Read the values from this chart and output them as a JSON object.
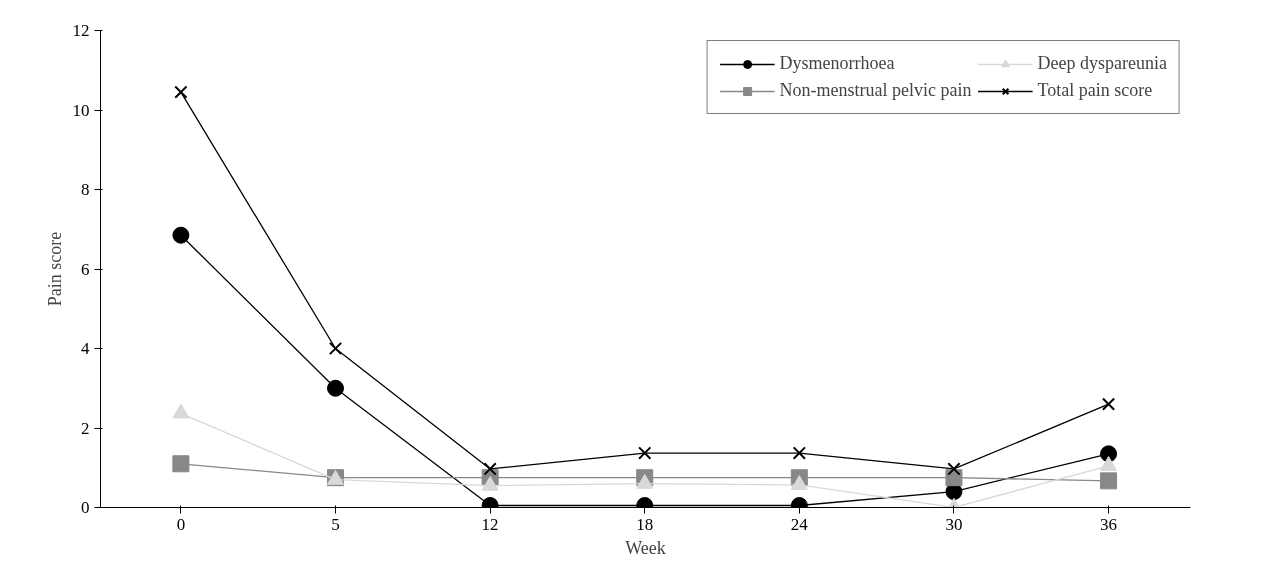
{
  "chart_data": {
    "type": "line",
    "xlabel": "Week",
    "ylabel": "Pain score",
    "categories": [
      "0",
      "5",
      "12",
      "18",
      "24",
      "30",
      "36"
    ],
    "ylim": [
      0,
      12
    ],
    "yticks": [
      0,
      2,
      4,
      6,
      8,
      10,
      12
    ],
    "grid": false,
    "legend": "top right",
    "series": [
      {
        "name": "Dysmenorrhoea",
        "color": "#000000",
        "marker": "circle",
        "values": [
          6.85,
          3.0,
          0.05,
          0.05,
          0.05,
          0.4,
          1.35
        ]
      },
      {
        "name": "Non-menstrual pelvic pain",
        "color": "#888888",
        "marker": "square",
        "values": [
          1.1,
          0.75,
          0.75,
          0.75,
          0.75,
          0.75,
          0.67
        ]
      },
      {
        "name": "Deep dyspareunia",
        "color": "#d9d9d9",
        "marker": "triangle",
        "values": [
          2.37,
          0.7,
          0.55,
          0.6,
          0.57,
          0.0,
          1.05
        ]
      },
      {
        "name": "Total pain score",
        "color": "#000000",
        "marker": "cross",
        "values": [
          10.45,
          4.0,
          0.97,
          1.37,
          1.37,
          0.97,
          2.6
        ]
      }
    ]
  }
}
